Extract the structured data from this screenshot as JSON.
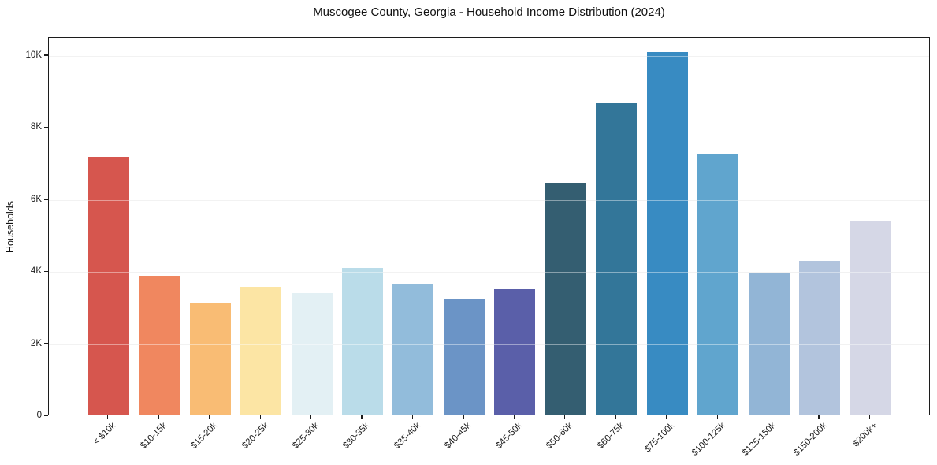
{
  "chart_data": {
    "type": "bar",
    "title": "Muscogee County, Georgia - Household Income Distribution (2024)",
    "xlabel": "",
    "ylabel": "Households",
    "categories": [
      "< $10k",
      "$10-15k",
      "$15-20k",
      "$20-25k",
      "$25-30k",
      "$30-35k",
      "$35-40k",
      "$40-45k",
      "$45-50k",
      "$50-60k",
      "$60-75k",
      "$75-100k",
      "$100-125k",
      "$125-150k",
      "$150-200k",
      "$200k+"
    ],
    "values": [
      7160,
      3860,
      3080,
      3550,
      3370,
      4080,
      3640,
      3200,
      3480,
      6440,
      8640,
      10060,
      7230,
      3940,
      4270,
      5390
    ],
    "bar_colors": [
      "#d6564e",
      "#f0875f",
      "#f9bc74",
      "#fce5a4",
      "#e3f0f4",
      "#badce9",
      "#92bcdb",
      "#6b94c6",
      "#5a5fa9",
      "#345e71",
      "#337699",
      "#388bc2",
      "#60a5ce",
      "#92b5d6",
      "#b2c4dd",
      "#d5d7e6"
    ],
    "ylim": [
      0,
      10500
    ],
    "yticks": [
      {
        "value": 0,
        "label": "0"
      },
      {
        "value": 2000,
        "label": "2K"
      },
      {
        "value": 4000,
        "label": "4K"
      },
      {
        "value": 6000,
        "label": "6K"
      },
      {
        "value": 8000,
        "label": "8K"
      },
      {
        "value": 10000,
        "label": "10K"
      }
    ],
    "grid": "horizontal",
    "legend": "none",
    "background_color": "#ffffff",
    "spine_color": "#1c1c1c",
    "gridline_color": "#e9e9e9"
  }
}
